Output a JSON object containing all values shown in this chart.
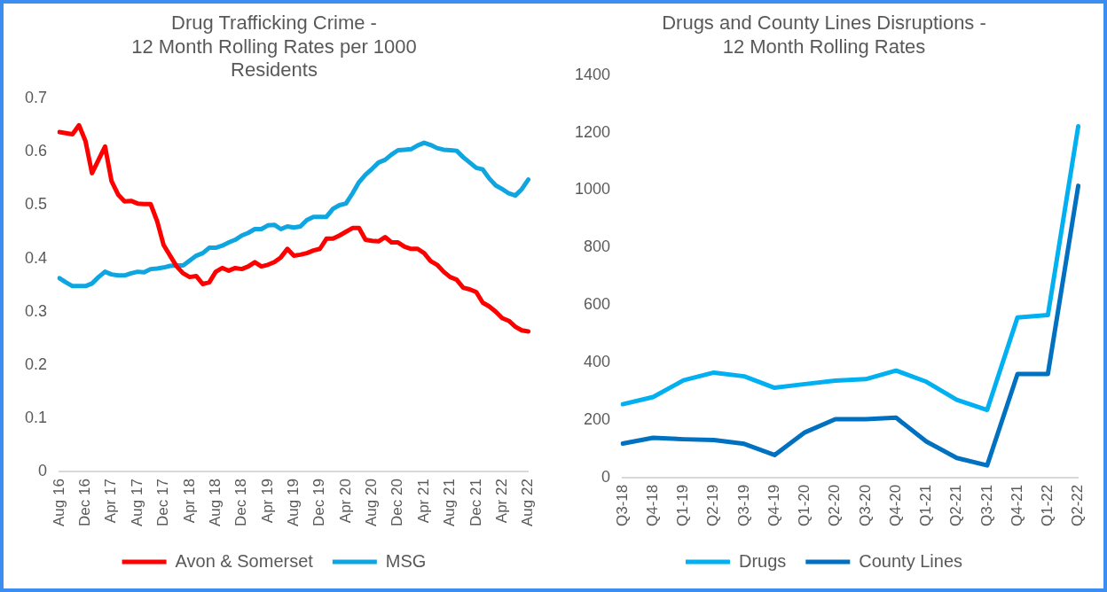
{
  "chart_data": [
    {
      "type": "line",
      "title": "Drug Trafficking Crime -\n12 Month Rolling Rates per 1000\nResidents",
      "categories": [
        "Aug 16",
        null,
        null,
        null,
        "Dec 16",
        null,
        null,
        null,
        "Apr 17",
        null,
        null,
        null,
        "Aug 17",
        null,
        null,
        null,
        "Dec 17",
        null,
        null,
        null,
        "Apr 18",
        null,
        null,
        null,
        "Aug 18",
        null,
        null,
        null,
        "Dec 18",
        null,
        null,
        null,
        "Apr 19",
        null,
        null,
        null,
        "Aug 19",
        null,
        null,
        null,
        "Dec 19",
        null,
        null,
        null,
        "Apr 20",
        null,
        null,
        null,
        "Aug 20",
        null,
        null,
        null,
        "Dec 20",
        null,
        null,
        null,
        "Apr 21",
        null,
        null,
        null,
        "Aug 21",
        null,
        null,
        null,
        "Dec 21",
        null,
        null,
        null,
        "Apr 22",
        null,
        null,
        null,
        "Aug 22"
      ],
      "series": [
        {
          "name": "Avon & Somerset",
          "color": "#ff0000",
          "values": [
            0.637,
            0.635,
            0.633,
            0.65,
            0.62,
            0.56,
            0.585,
            0.61,
            0.545,
            0.52,
            0.507,
            0.508,
            0.503,
            0.502,
            0.502,
            0.47,
            0.425,
            0.405,
            0.385,
            0.372,
            0.365,
            0.367,
            0.352,
            0.355,
            0.375,
            0.382,
            0.377,
            0.382,
            0.38,
            0.385,
            0.393,
            0.385,
            0.388,
            0.393,
            0.402,
            0.418,
            0.405,
            0.407,
            0.41,
            0.415,
            0.418,
            0.437,
            0.437,
            0.443,
            0.45,
            0.457,
            0.457,
            0.435,
            0.433,
            0.432,
            0.44,
            0.43,
            0.43,
            0.422,
            0.418,
            0.418,
            0.41,
            0.395,
            0.388,
            0.375,
            0.365,
            0.36,
            0.345,
            0.342,
            0.337,
            0.317,
            0.31,
            0.3,
            0.288,
            0.283,
            0.272,
            0.265,
            0.263
          ]
        },
        {
          "name": "MSG",
          "color": "#0ea5e0",
          "values": [
            0.363,
            0.355,
            0.348,
            0.348,
            0.348,
            0.353,
            0.365,
            0.375,
            0.37,
            0.368,
            0.368,
            0.372,
            0.375,
            0.374,
            0.38,
            0.381,
            0.383,
            0.386,
            0.387,
            0.387,
            0.396,
            0.405,
            0.41,
            0.42,
            0.42,
            0.424,
            0.43,
            0.435,
            0.443,
            0.448,
            0.455,
            0.455,
            0.462,
            0.463,
            0.455,
            0.46,
            0.458,
            0.46,
            0.472,
            0.478,
            0.478,
            0.478,
            0.493,
            0.5,
            0.503,
            0.522,
            0.543,
            0.557,
            0.568,
            0.58,
            0.585,
            0.595,
            0.603,
            0.604,
            0.605,
            0.612,
            0.617,
            0.613,
            0.607,
            0.604,
            0.603,
            0.602,
            0.59,
            0.58,
            0.57,
            0.567,
            0.55,
            0.537,
            0.53,
            0.522,
            0.518,
            0.53,
            0.548
          ]
        }
      ],
      "ylim": [
        0,
        0.7
      ],
      "yticks": [
        0,
        0.1,
        0.2,
        0.3,
        0.4,
        0.5,
        0.6,
        0.7
      ],
      "grid": false,
      "legend": "bottom",
      "marker": "none",
      "line_style": "solid"
    },
    {
      "type": "line",
      "title": "Drugs and County Lines Disruptions -\n12 Month Rolling Rates",
      "categories": [
        "Q3-18",
        "Q4-18",
        "Q1-19",
        "Q2-19",
        "Q3-19",
        "Q4-19",
        "Q1-20",
        "Q2-20",
        "Q3-20",
        "Q4-20",
        "Q1-21",
        "Q2-21",
        "Q3-21",
        "Q4-21",
        "Q1-22",
        "Q2-22"
      ],
      "series": [
        {
          "name": "Drugs",
          "color": "#00b0f0",
          "values": [
            255,
            280,
            338,
            365,
            352,
            312,
            325,
            337,
            342,
            372,
            333,
            270,
            235,
            557,
            565,
            1222
          ]
        },
        {
          "name": "County Lines",
          "color": "#0070c0",
          "values": [
            118,
            138,
            133,
            130,
            117,
            78,
            157,
            203,
            203,
            208,
            125,
            68,
            42,
            360,
            360,
            1015
          ]
        }
      ],
      "ylim": [
        0,
        1400
      ],
      "yticks": [
        0,
        200,
        400,
        600,
        800,
        1000,
        1200,
        1400
      ],
      "grid": false,
      "legend": "bottom",
      "marker": "none",
      "line_style": "solid"
    }
  ]
}
